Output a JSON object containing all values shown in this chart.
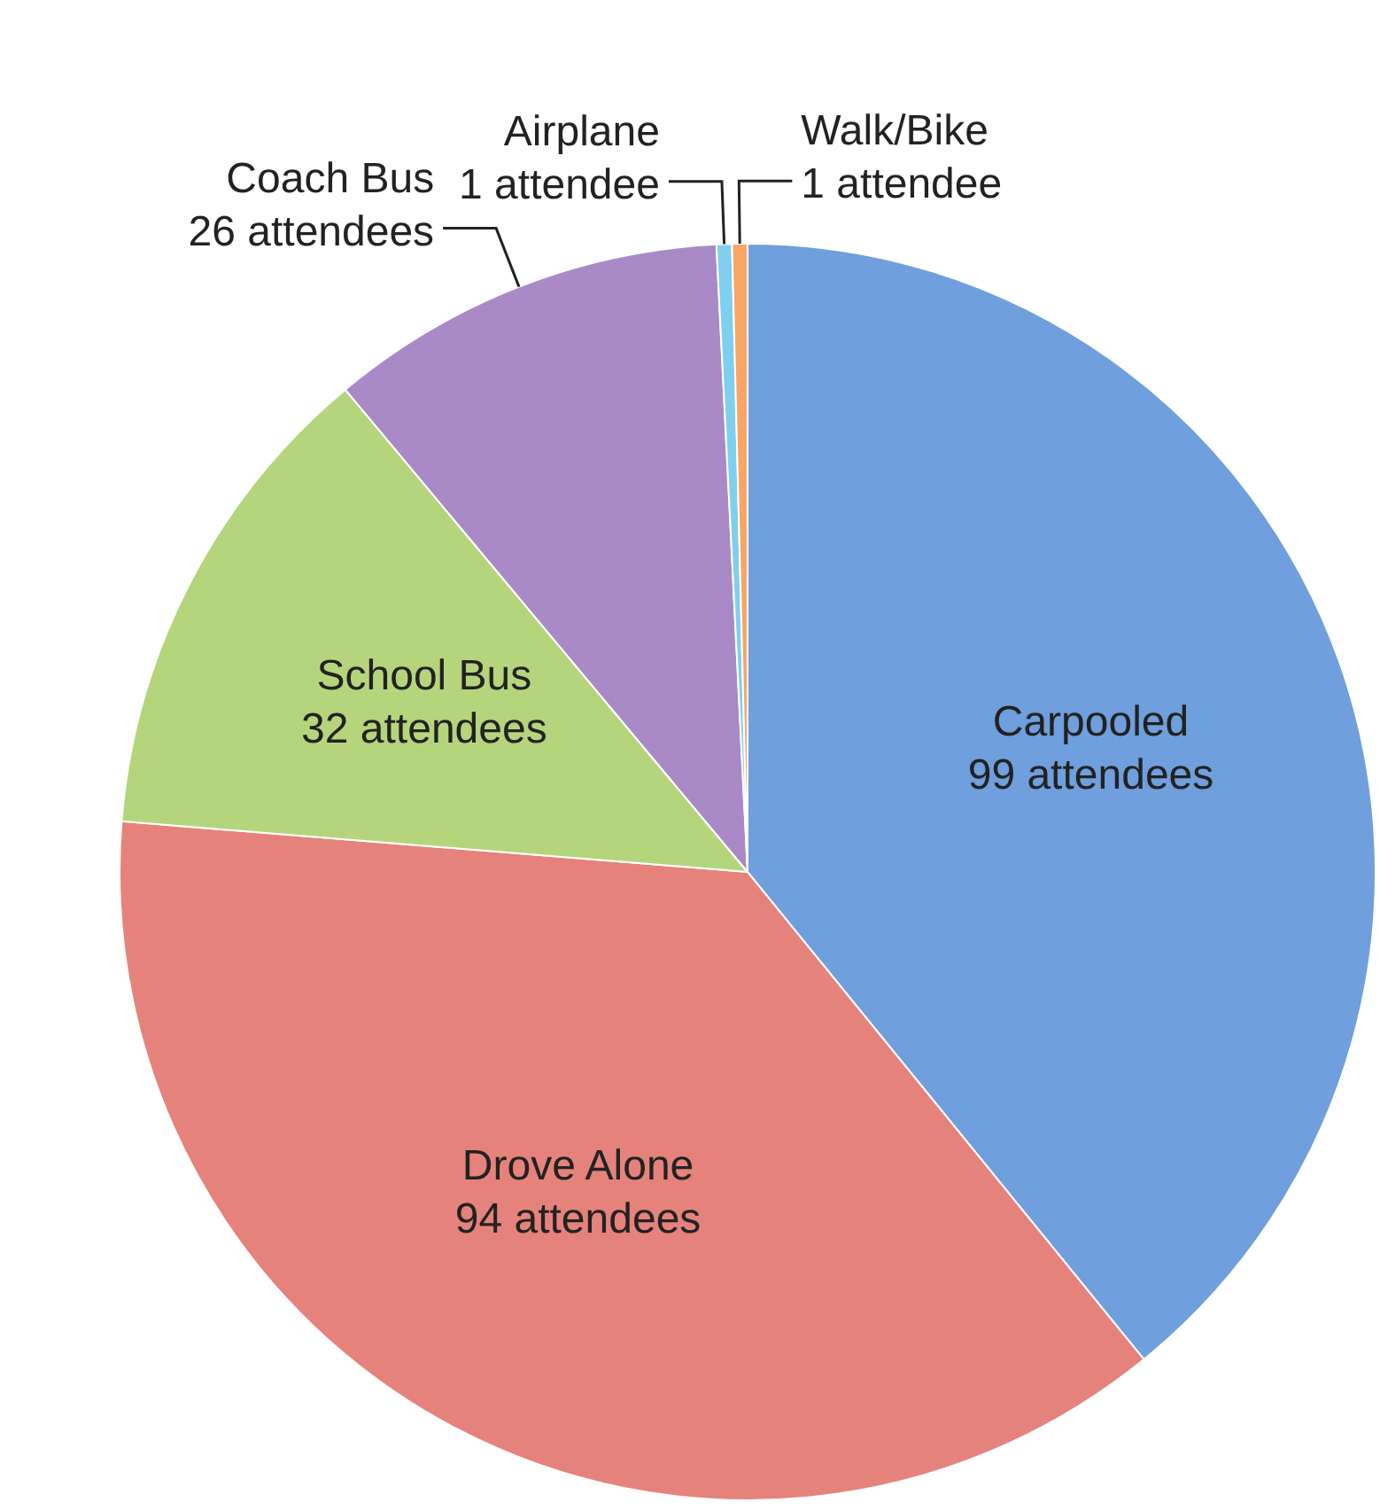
{
  "chart_data": {
    "type": "pie",
    "categories": [
      "Carpooled",
      "Drove Alone",
      "School Bus",
      "Coach Bus",
      "Airplane",
      "Walk/Bike"
    ],
    "values": [
      99,
      94,
      32,
      26,
      1,
      1
    ],
    "colors": [
      "#6f9fdc",
      "#e6827c",
      "#b5d57c",
      "#a98ac6",
      "#7fd0ee",
      "#f9a565"
    ],
    "value_labels": [
      "99 attendees",
      "94 attendees",
      "32 attendees",
      "26 attendees",
      "1 attendee",
      "1 attendee"
    ]
  }
}
